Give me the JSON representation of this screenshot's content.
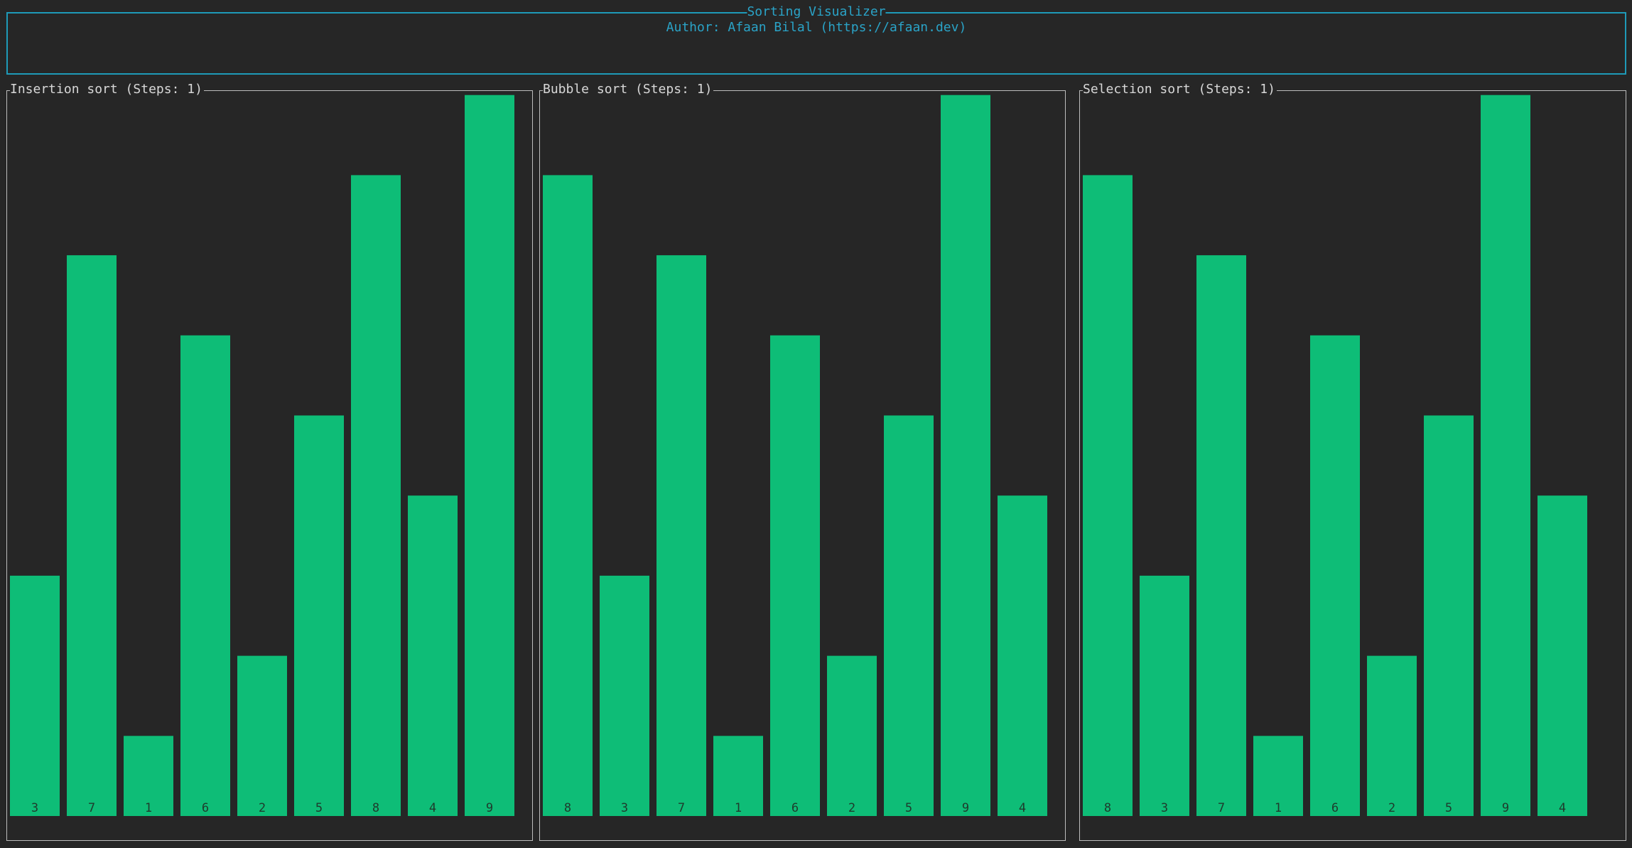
{
  "header": {
    "title": "Sorting Visualizer",
    "author": "Author: Afaan Bilal (https://afaan.dev)"
  },
  "colors": {
    "accent": "#1e9ab8",
    "bar": "#0ebd77",
    "background": "#262626",
    "panel_border": "#bdbdbd"
  },
  "panels": [
    {
      "title": "Insertion sort (Steps: 1)"
    },
    {
      "title": "Bubble sort (Steps: 1)"
    },
    {
      "title": "Selection sort (Steps: 1)"
    }
  ],
  "chart_data": [
    {
      "type": "bar",
      "title": "Insertion sort (Steps: 1)",
      "categories": [
        "3",
        "7",
        "1",
        "6",
        "2",
        "5",
        "8",
        "4",
        "9"
      ],
      "values": [
        3,
        7,
        1,
        6,
        2,
        5,
        8,
        4,
        9
      ],
      "ylim": [
        0,
        9
      ]
    },
    {
      "type": "bar",
      "title": "Bubble sort (Steps: 1)",
      "categories": [
        "8",
        "3",
        "7",
        "1",
        "6",
        "2",
        "5",
        "9",
        "4"
      ],
      "values": [
        8,
        3,
        7,
        1,
        6,
        2,
        5,
        9,
        4
      ],
      "ylim": [
        0,
        9
      ]
    },
    {
      "type": "bar",
      "title": "Selection sort (Steps: 1)",
      "categories": [
        "8",
        "3",
        "7",
        "1",
        "6",
        "2",
        "5",
        "9",
        "4"
      ],
      "values": [
        8,
        3,
        7,
        1,
        6,
        2,
        5,
        9,
        4
      ],
      "ylim": [
        0,
        9
      ]
    }
  ]
}
